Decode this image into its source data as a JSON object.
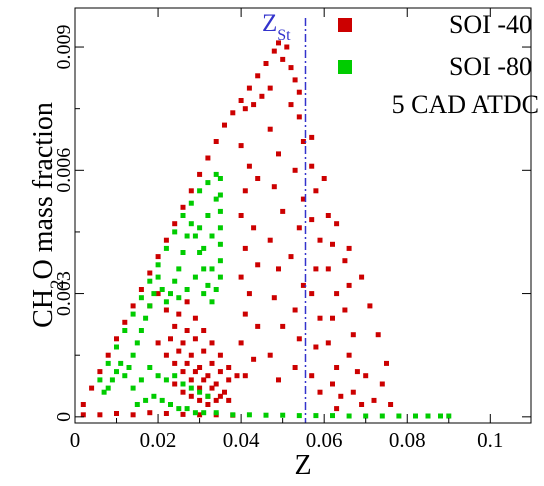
{
  "chart_data": {
    "type": "scatter",
    "xlabel": "Z",
    "ylabel": {
      "main": "CH",
      "sub": "2",
      "rest": "O mass fraction"
    },
    "xlim": [
      0,
      0.1098
    ],
    "ylim": [
      -0.00015,
      0.00995
    ],
    "x_ticks": [
      0,
      0.02,
      0.04,
      0.06,
      0.08,
      0.1
    ],
    "x_tick_labels": [
      "0",
      "0.02",
      "0.04",
      "0.06",
      "0.08",
      "0.1"
    ],
    "y_ticks": [
      0,
      0.003,
      0.006,
      0.009
    ],
    "y_tick_labels": [
      "0",
      "0.003",
      "0.006",
      "0.009"
    ],
    "reference_line": {
      "x": 0.0555,
      "label_main": "Z",
      "label_sub": "St",
      "color": "#3333cc"
    },
    "annotation": "5 CAD ATDC",
    "grid": false,
    "legend_position": "top-right",
    "series": [
      {
        "name": "SOI -40",
        "color": "#cc0000",
        "points": [
          [
            0.002,
            0.0003
          ],
          [
            0.004,
            0.0007
          ],
          [
            0.006,
            0.0011
          ],
          [
            0.008,
            0.0015
          ],
          [
            0.01,
            0.0019
          ],
          [
            0.012,
            0.0023
          ],
          [
            0.014,
            0.0027
          ],
          [
            0.016,
            0.0031
          ],
          [
            0.018,
            0.0035
          ],
          [
            0.02,
            0.0039
          ],
          [
            0.022,
            0.0043
          ],
          [
            0.024,
            0.0047
          ],
          [
            0.026,
            0.0051
          ],
          [
            0.028,
            0.0055
          ],
          [
            0.03,
            0.0059
          ],
          [
            0.032,
            0.0063
          ],
          [
            0.034,
            0.0067
          ],
          [
            0.036,
            0.0071
          ],
          [
            0.038,
            0.0074
          ],
          [
            0.04,
            0.0077
          ],
          [
            0.042,
            0.008
          ],
          [
            0.044,
            0.0083
          ],
          [
            0.046,
            0.0086
          ],
          [
            0.048,
            0.0089
          ],
          [
            0.049,
            0.0091
          ],
          [
            0.05,
            0.0087
          ],
          [
            0.051,
            0.009
          ],
          [
            0.052,
            0.0085
          ],
          [
            0.053,
            0.0082
          ],
          [
            0.054,
            0.0079
          ],
          [
            0.045,
            0.0078
          ],
          [
            0.043,
            0.0076
          ],
          [
            0.041,
            0.0075
          ],
          [
            0.047,
            0.008
          ],
          [
            0.052,
            0.0076
          ],
          [
            0.04,
            0.0066
          ],
          [
            0.042,
            0.0061
          ],
          [
            0.041,
            0.0055
          ],
          [
            0.044,
            0.0058
          ],
          [
            0.04,
            0.0049
          ],
          [
            0.043,
            0.0046
          ],
          [
            0.041,
            0.0041
          ],
          [
            0.044,
            0.0037
          ],
          [
            0.04,
            0.0034
          ],
          [
            0.042,
            0.003
          ],
          [
            0.041,
            0.0025
          ],
          [
            0.044,
            0.0022
          ],
          [
            0.04,
            0.0018
          ],
          [
            0.043,
            0.0014
          ],
          [
            0.041,
            0.001
          ],
          [
            0.047,
            0.007
          ],
          [
            0.049,
            0.0064
          ],
          [
            0.048,
            0.0056
          ],
          [
            0.05,
            0.005
          ],
          [
            0.047,
            0.0043
          ],
          [
            0.049,
            0.0036
          ],
          [
            0.048,
            0.0029
          ],
          [
            0.05,
            0.0022
          ],
          [
            0.047,
            0.0015
          ],
          [
            0.049,
            0.0009
          ],
          [
            0.054,
            0.0073
          ],
          [
            0.055,
            0.0067
          ],
          [
            0.053,
            0.006
          ],
          [
            0.055,
            0.0053
          ],
          [
            0.054,
            0.0046
          ],
          [
            0.052,
            0.0039
          ],
          [
            0.055,
            0.0032
          ],
          [
            0.053,
            0.0026
          ],
          [
            0.054,
            0.0019
          ],
          [
            0.053,
            0.0012
          ],
          [
            0.057,
            0.0061
          ],
          [
            0.058,
            0.0055
          ],
          [
            0.057,
            0.0048
          ],
          [
            0.059,
            0.0043
          ],
          [
            0.058,
            0.0036
          ],
          [
            0.057,
            0.003
          ],
          [
            0.059,
            0.0024
          ],
          [
            0.058,
            0.0017
          ],
          [
            0.057,
            0.001
          ],
          [
            0.059,
            0.0006
          ],
          [
            0.061,
            0.0049
          ],
          [
            0.062,
            0.0042
          ],
          [
            0.061,
            0.0036
          ],
          [
            0.063,
            0.003
          ],
          [
            0.062,
            0.0024
          ],
          [
            0.061,
            0.0018
          ],
          [
            0.063,
            0.0012
          ],
          [
            0.062,
            0.0008
          ],
          [
            0.064,
            0.0005
          ],
          [
            0.063,
            0.0002
          ],
          [
            0.065,
            0.0038
          ],
          [
            0.066,
            0.0032
          ],
          [
            0.065,
            0.0026
          ],
          [
            0.067,
            0.002
          ],
          [
            0.066,
            0.0015
          ],
          [
            0.068,
            0.0011
          ],
          [
            0.067,
            0.0006
          ],
          [
            0.069,
            0.0003
          ],
          [
            0.07,
            0.001
          ],
          [
            0.072,
            0.0004
          ],
          [
            0.057,
            0.0068
          ],
          [
            0.06,
            0.0058
          ],
          [
            0.063,
            0.0047
          ],
          [
            0.066,
            0.0041
          ],
          [
            0.069,
            0.0034
          ],
          [
            0.071,
            0.0027
          ],
          [
            0.073,
            0.002
          ],
          [
            0.075,
            0.0013
          ],
          [
            0.074,
            0.0008
          ],
          [
            0.076,
            0.0003
          ],
          [
            0.018,
            0.0027
          ],
          [
            0.02,
            0.003
          ],
          [
            0.022,
            0.0026
          ],
          [
            0.024,
            0.0022
          ],
          [
            0.026,
            0.0018
          ],
          [
            0.028,
            0.0015
          ],
          [
            0.03,
            0.0012
          ],
          [
            0.032,
            0.001
          ],
          [
            0.034,
            0.0008
          ],
          [
            0.036,
            0.0006
          ],
          [
            0.02,
            0.0018
          ],
          [
            0.022,
            0.0015
          ],
          [
            0.024,
            0.0013
          ],
          [
            0.026,
            0.0011
          ],
          [
            0.028,
            0.0009
          ],
          [
            0.03,
            0.0007
          ],
          [
            0.032,
            0.0005
          ],
          [
            0.034,
            0.0004
          ],
          [
            0.025,
            0.0025
          ],
          [
            0.027,
            0.0021
          ],
          [
            0.029,
            0.0019
          ],
          [
            0.031,
            0.0016
          ],
          [
            0.033,
            0.0013
          ],
          [
            0.035,
            0.0011
          ],
          [
            0.037,
            0.0009
          ],
          [
            0.024,
            0.0008
          ],
          [
            0.026,
            0.0006
          ],
          [
            0.028,
            0.0005
          ],
          [
            0.03,
            0.0004
          ],
          [
            0.032,
            0.0003
          ],
          [
            0.023,
            0.0019
          ],
          [
            0.025,
            0.0016
          ],
          [
            0.027,
            0.0013
          ],
          [
            0.029,
            0.0011
          ],
          [
            0.031,
            0.0009
          ],
          [
            0.033,
            0.0007
          ],
          [
            0.035,
            0.0005
          ],
          [
            0.037,
            0.0004
          ],
          [
            0.027,
            0.0028
          ],
          [
            0.029,
            0.0024
          ],
          [
            0.031,
            0.0021
          ],
          [
            0.033,
            0.0018
          ],
          [
            0.035,
            0.0015
          ],
          [
            0.037,
            0.0012
          ],
          [
            0.039,
            0.001
          ],
          [
            0.002,
            5e-05
          ],
          [
            0.006,
            5e-05
          ],
          [
            0.01,
            8e-05
          ],
          [
            0.014,
            5e-05
          ],
          [
            0.018,
            0.0001
          ],
          [
            0.022,
            8e-05
          ],
          [
            0.026,
            6e-05
          ],
          [
            0.03,
            5e-05
          ],
          [
            0.034,
            5e-05
          ],
          [
            0.038,
            4e-05
          ]
        ]
      },
      {
        "name": "SOI -80",
        "color": "#00cc00",
        "points": [
          [
            0.006,
            0.0009
          ],
          [
            0.008,
            0.0013
          ],
          [
            0.01,
            0.0017
          ],
          [
            0.012,
            0.0021
          ],
          [
            0.014,
            0.0025
          ],
          [
            0.016,
            0.0029
          ],
          [
            0.018,
            0.0033
          ],
          [
            0.02,
            0.0037
          ],
          [
            0.022,
            0.0041
          ],
          [
            0.024,
            0.0045
          ],
          [
            0.026,
            0.0049
          ],
          [
            0.028,
            0.0052
          ],
          [
            0.03,
            0.0055
          ],
          [
            0.032,
            0.0057
          ],
          [
            0.034,
            0.0059
          ],
          [
            0.035,
            0.0058
          ],
          [
            0.035,
            0.0054
          ],
          [
            0.035,
            0.005
          ],
          [
            0.035,
            0.0046
          ],
          [
            0.035,
            0.0042
          ],
          [
            0.035,
            0.0038
          ],
          [
            0.035,
            0.0034
          ],
          [
            0.034,
            0.0031
          ],
          [
            0.033,
            0.0028
          ],
          [
            0.032,
            0.0032
          ],
          [
            0.031,
            0.0036
          ],
          [
            0.03,
            0.004
          ],
          [
            0.029,
            0.0044
          ],
          [
            0.028,
            0.0047
          ],
          [
            0.027,
            0.0044
          ],
          [
            0.026,
            0.004
          ],
          [
            0.025,
            0.0036
          ],
          [
            0.024,
            0.0033
          ],
          [
            0.023,
            0.003
          ],
          [
            0.022,
            0.0028
          ],
          [
            0.021,
            0.0031
          ],
          [
            0.02,
            0.0034
          ],
          [
            0.019,
            0.003
          ],
          [
            0.018,
            0.0027
          ],
          [
            0.017,
            0.0024
          ],
          [
            0.016,
            0.0021
          ],
          [
            0.015,
            0.0018
          ],
          [
            0.014,
            0.0015
          ],
          [
            0.013,
            0.0012
          ],
          [
            0.012,
            0.001
          ],
          [
            0.011,
            0.0013
          ],
          [
            0.01,
            0.0011
          ],
          [
            0.009,
            0.0009
          ],
          [
            0.008,
            0.0007
          ],
          [
            0.007,
            0.0006
          ],
          [
            0.025,
            0.0029
          ],
          [
            0.027,
            0.0031
          ],
          [
            0.029,
            0.0034
          ],
          [
            0.031,
            0.003
          ],
          [
            0.033,
            0.0036
          ],
          [
            0.03,
            0.0046
          ],
          [
            0.032,
            0.0049
          ],
          [
            0.034,
            0.0053
          ],
          [
            0.033,
            0.0044
          ],
          [
            0.031,
            0.0041
          ],
          [
            0.018,
            0.0012
          ],
          [
            0.02,
            0.001
          ],
          [
            0.022,
            0.0009
          ],
          [
            0.024,
            0.001
          ],
          [
            0.026,
            0.0008
          ],
          [
            0.028,
            0.0007
          ],
          [
            0.03,
            0.0006
          ],
          [
            0.032,
            0.0005
          ],
          [
            0.019,
            0.0005
          ],
          [
            0.021,
            0.0004
          ],
          [
            0.023,
            0.0003
          ],
          [
            0.025,
            0.0002
          ],
          [
            0.027,
            0.0002
          ],
          [
            0.029,
            0.0001
          ],
          [
            0.031,
            0.0001
          ],
          [
            0.034,
            0.0001
          ],
          [
            0.038,
            5e-05
          ],
          [
            0.042,
            5e-05
          ],
          [
            0.046,
            4e-05
          ],
          [
            0.05,
            4e-05
          ],
          [
            0.054,
            3e-05
          ],
          [
            0.058,
            3e-05
          ],
          [
            0.062,
            3e-05
          ],
          [
            0.066,
            2e-05
          ],
          [
            0.07,
            2e-05
          ],
          [
            0.074,
            2e-05
          ],
          [
            0.078,
            2e-05
          ],
          [
            0.082,
            2e-05
          ],
          [
            0.085,
            2e-05
          ],
          [
            0.088,
            2e-05
          ],
          [
            0.09,
            2e-05
          ],
          [
            0.016,
            0.0009
          ],
          [
            0.014,
            0.0007
          ],
          [
            0.017,
            0.0004
          ],
          [
            0.015,
            0.0003
          ]
        ]
      }
    ]
  }
}
